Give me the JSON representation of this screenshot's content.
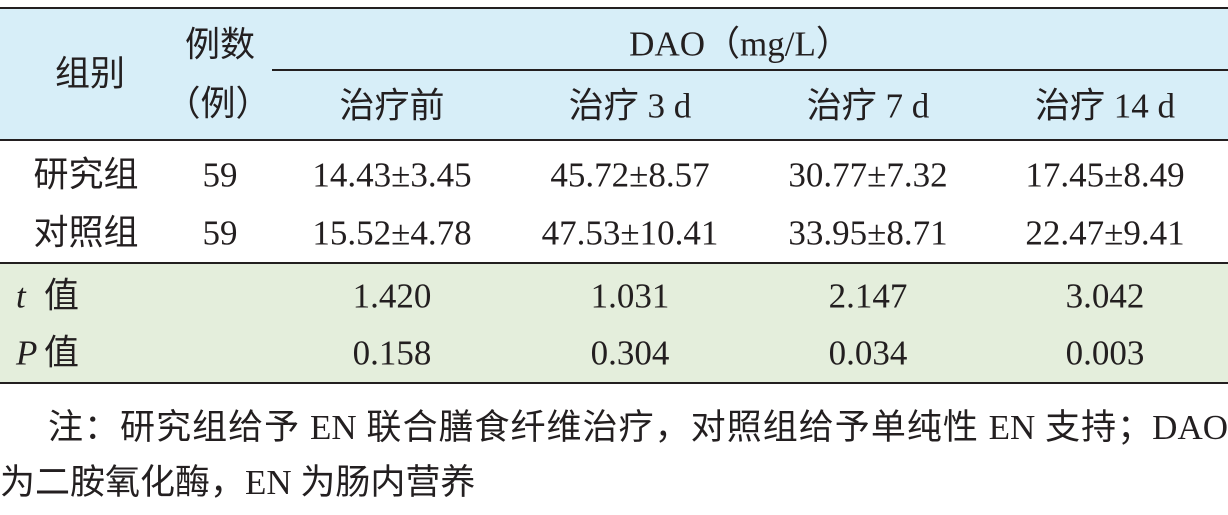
{
  "table": {
    "header": {
      "group": "组别",
      "count": [
        "例数",
        "（例）"
      ],
      "measure": "DAO（mg/L）",
      "timepoints": [
        "治疗前",
        "治疗 3 d",
        "治疗 7 d",
        "治疗 14 d"
      ]
    },
    "rows": [
      {
        "group": "研究组",
        "count": "59",
        "values": [
          "14.43±3.45",
          "45.72±8.57",
          "30.77±7.32",
          "17.45±8.49"
        ]
      },
      {
        "group": "对照组",
        "count": "59",
        "values": [
          "15.52±4.78",
          "47.53±10.41",
          "33.95±8.71",
          "22.47±9.41"
        ]
      }
    ],
    "stats": [
      {
        "symbol": "t",
        "name": "值",
        "values": [
          "1.420",
          "1.031",
          "2.147",
          "3.042"
        ]
      },
      {
        "symbol": "P",
        "name": "值",
        "values": [
          "0.158",
          "0.304",
          "0.034",
          "0.003"
        ]
      }
    ]
  },
  "note": "注：研究组给予 EN 联合膳食纤维治疗，对照组给予单纯性 EN 支持；DAO 为二胺氧化酶，EN 为肠内营养"
}
